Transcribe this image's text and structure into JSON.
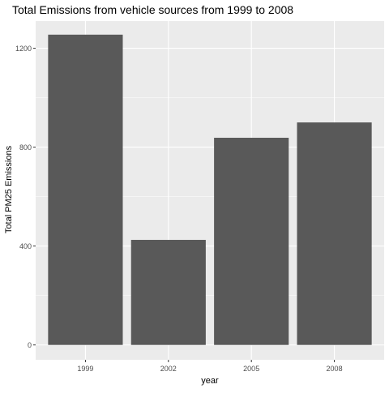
{
  "chart_data": {
    "type": "bar",
    "title": "Total Emissions from vehicle sources from 1999 to 2008",
    "xlabel": "year",
    "ylabel": "Total PM25 Emissions",
    "categories": [
      "1999",
      "2002",
      "2005",
      "2008"
    ],
    "values": [
      1255,
      425,
      838,
      900
    ],
    "ylim": [
      -60,
      1310
    ],
    "yticks": [
      0,
      400,
      800,
      1200
    ],
    "ytick_labels": [
      "0",
      "400",
      "800",
      "1200"
    ],
    "y_minor_ticks": [
      200,
      600,
      1000
    ],
    "grid": true,
    "legend": "none",
    "colors": {
      "panel": "#ebebeb",
      "grid": "#ffffff",
      "bar": "#595959",
      "text": "#000000",
      "tick_text": "#4d4d4d",
      "tick_mark": "#333333"
    }
  }
}
